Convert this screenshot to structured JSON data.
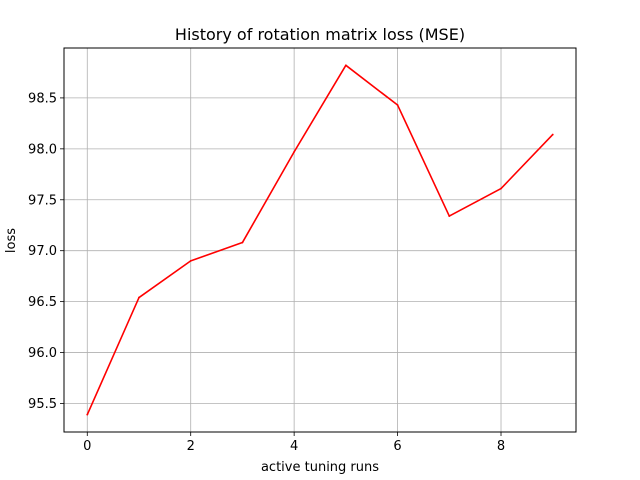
{
  "chart_data": {
    "type": "line",
    "title": "History of rotation matrix loss (MSE)",
    "xlabel": "active tuning runs",
    "ylabel": "loss",
    "x": [
      0,
      1,
      2,
      3,
      4,
      5,
      6,
      7,
      8,
      9
    ],
    "series": [
      {
        "values": [
          95.39,
          96.54,
          96.9,
          97.08,
          97.97,
          98.82,
          98.43,
          97.34,
          97.61,
          98.14
        ],
        "color": "#ff0000"
      }
    ],
    "xlim": [
      -0.45,
      9.45
    ],
    "ylim": [
      95.22,
      98.99
    ],
    "xticks": [
      0,
      2,
      4,
      6,
      8
    ],
    "xtick_labels": [
      "0",
      "2",
      "4",
      "6",
      "8"
    ],
    "yticks": [
      95.5,
      96.0,
      96.5,
      97.0,
      97.5,
      98.0,
      98.5
    ],
    "ytick_labels": [
      "95.5",
      "96.0",
      "96.5",
      "97.0",
      "97.5",
      "98.0",
      "98.5"
    ],
    "grid": true,
    "grid_color": "#b0b0b0"
  }
}
